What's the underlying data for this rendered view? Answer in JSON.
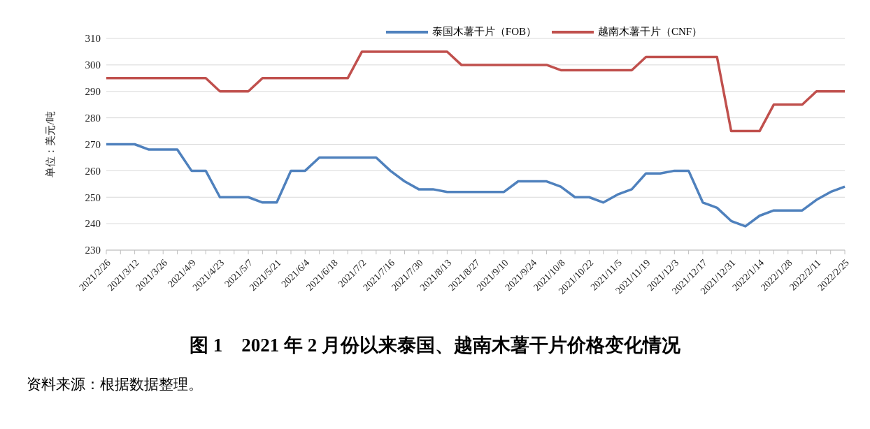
{
  "chart_data": {
    "type": "line",
    "title": "图 1　2021 年 2 月份以来泰国、越南木薯干片价格变化情况",
    "ylabel": "单位：美元/吨",
    "annotations": [
      "资料来源：根据数据整理。"
    ],
    "categories": [
      "2021/2/26",
      null,
      "2021/3/12",
      null,
      "2021/3/26",
      null,
      "2021/4/9",
      null,
      "2021/4/23",
      null,
      "2021/5/7",
      null,
      "2021/5/21",
      null,
      "2021/6/4",
      null,
      "2021/6/18",
      null,
      "2021/7/2",
      null,
      "2021/7/16",
      null,
      "2021/7/30",
      null,
      "2021/8/13",
      null,
      "2021/8/27",
      null,
      "2021/9/10",
      null,
      "2021/9/24",
      null,
      "2021/10/8",
      null,
      "2021/10/22",
      null,
      "2021/11/5",
      null,
      "2021/11/19",
      null,
      "2021/12/3",
      null,
      "2021/12/17",
      null,
      "2021/12/31",
      null,
      "2022/1/14",
      null,
      "2022/1/28",
      null,
      "2022/2/11",
      null,
      "2022/2/25"
    ],
    "series": [
      {
        "name": "泰国木薯干片（FOB）",
        "color": "#4f81bd",
        "values": [
          270,
          270,
          270,
          268,
          268,
          268,
          260,
          260,
          250,
          250,
          250,
          248,
          248,
          260,
          260,
          265,
          265,
          265,
          265,
          265,
          260,
          256,
          253,
          253,
          252,
          252,
          252,
          252,
          252,
          256,
          256,
          256,
          254,
          250,
          250,
          248,
          251,
          253,
          259,
          259,
          260,
          260,
          248,
          246,
          241,
          239,
          243,
          245,
          245,
          245,
          249,
          252,
          254
        ]
      },
      {
        "name": "越南木薯干片（CNF）",
        "color": "#c0504d",
        "values": [
          295,
          295,
          295,
          295,
          295,
          295,
          295,
          295,
          290,
          290,
          290,
          295,
          295,
          295,
          295,
          295,
          295,
          295,
          305,
          305,
          305,
          305,
          305,
          305,
          305,
          300,
          300,
          300,
          300,
          300,
          300,
          300,
          298,
          298,
          298,
          298,
          298,
          298,
          303,
          303,
          303,
          303,
          303,
          303,
          275,
          275,
          275,
          285,
          285,
          285,
          290,
          290,
          290
        ]
      }
    ],
    "ylim": [
      230,
      310
    ],
    "yticks": [
      230,
      240,
      250,
      260,
      270,
      280,
      290,
      300,
      310
    ],
    "grid": "y",
    "legend": "top",
    "marker": "none",
    "line_style": "solid"
  }
}
